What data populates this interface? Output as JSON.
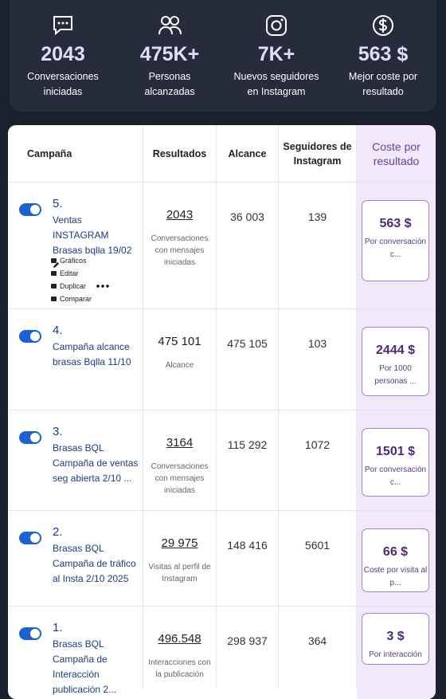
{
  "summary": [
    {
      "value": "2043",
      "label": "Conversaciones iniciadas"
    },
    {
      "value": "475K+",
      "label": "Personas alcanzadas"
    },
    {
      "value": "7K+",
      "label": "Nuevos seguidores en Instagram"
    },
    {
      "value": "563 $",
      "label": "Mejor coste por resultado"
    }
  ],
  "table": {
    "headers": [
      "Campaña",
      "Resultados",
      "Alcance",
      "Seguidores de Instagram",
      "Coste por resultado"
    ],
    "rows": [
      {
        "number": "5.",
        "name": "Ventas INSTAGRAM Brasas bqlla 19/02",
        "actions": [
          "Gráficos",
          "Editar",
          "Duplicar",
          "Comparar"
        ],
        "result": "2043",
        "result_linked": true,
        "result_label": "Conversaciones con mensajes iniciadas",
        "reach": "36 003",
        "followers": "139",
        "cost": "563 $",
        "cost_label": "Por conversación c..."
      },
      {
        "number": "4.",
        "name": "Campaña alcance brasas Bqlla 11/10",
        "result": "475 101",
        "result_linked": false,
        "result_label": "Alcance",
        "reach": "475 105",
        "followers": "103",
        "cost": "2444 $",
        "cost_label": "Por 1000 personas ..."
      },
      {
        "number": "3.",
        "name": "Brasas BQL Campaña de ventas seg abierta 2/10 ...",
        "result": "3164",
        "result_linked": true,
        "result_label": "Conversaciones con mensajes iniciadas",
        "reach": "115 292",
        "followers": "1072",
        "cost": "1501 $",
        "cost_label": "Por conversación c..."
      },
      {
        "number": "2.",
        "name": "Brasas BQL Campaña de tráfico al Insta 2/10 2025",
        "result": "29 975",
        "result_linked": true,
        "result_label": "Visitas al perfil de Instagram",
        "reach": "148 416",
        "followers": "5601",
        "cost": "66 $",
        "cost_label": "Coste por visita al p..."
      },
      {
        "number": "1.",
        "name": "Brasas BQL Campaña de Interacción publicación 2...",
        "result": "496.548",
        "result_linked": true,
        "result_label": "Interacciones con la publicación",
        "reach": "298 937",
        "followers": "364",
        "cost": "3 $",
        "cost_label": "Por interacción"
      }
    ]
  }
}
